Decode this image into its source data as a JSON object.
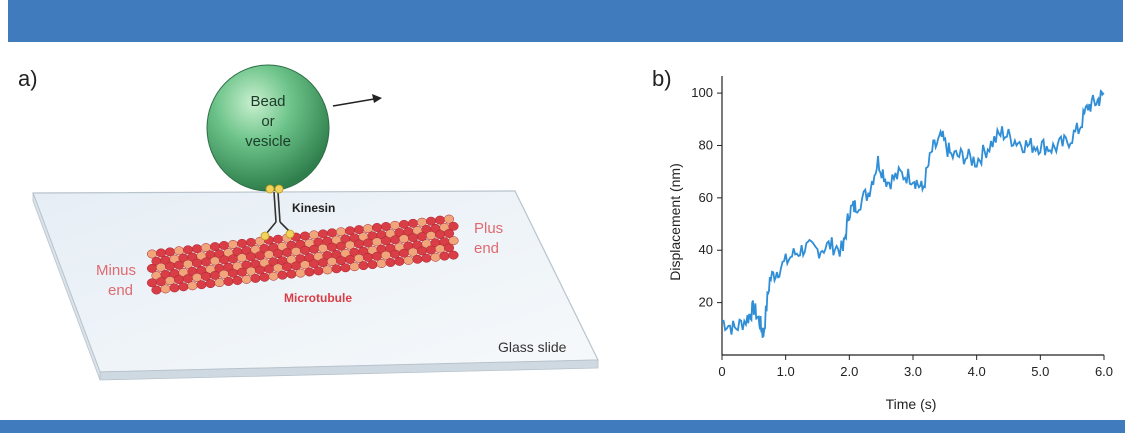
{
  "colors": {
    "band": "#3f7bbd",
    "bead": "#45a36a",
    "tubule": "#d93d46",
    "tubule_alt": "#f0a67a",
    "label_red": "#e06a70",
    "trace": "#2f8ed6"
  },
  "panel_a": {
    "label": "a)",
    "bead_text": [
      "Bead",
      "or",
      "vesicle"
    ],
    "kinesin": "Kinesin",
    "plus_end": [
      "Plus",
      "end"
    ],
    "minus_end": [
      "Minus",
      "end"
    ],
    "microtubule": "Microtubule",
    "glass_slide": "Glass slide"
  },
  "panel_b": {
    "label": "b)",
    "chart_data": {
      "type": "line",
      "xlabel": "Time (s)",
      "ylabel": "Displacement (nm)",
      "x_ticks": [
        "0",
        "1.0",
        "2.0",
        "3.0",
        "4.0",
        "5.0",
        "6.0"
      ],
      "y_ticks": [
        "20",
        "40",
        "60",
        "80",
        "100"
      ],
      "xlim": [
        0,
        6
      ],
      "ylim": [
        0,
        105
      ],
      "series": [
        {
          "x": [
            0,
            0.2,
            0.4,
            0.5,
            0.6,
            0.65,
            0.75,
            0.9,
            1.1,
            1.3,
            1.5,
            1.7,
            1.9,
            2.0,
            2.1,
            2.3,
            2.45,
            2.6,
            2.8,
            3.0,
            3.15,
            3.3,
            3.45,
            3.6,
            3.8,
            4.0,
            4.2,
            4.4,
            4.6,
            4.8,
            5.0,
            5.2,
            5.4,
            5.6,
            5.75,
            5.9,
            6.0
          ],
          "y": [
            13,
            10,
            14,
            18,
            12,
            8,
            29,
            33,
            38,
            41,
            40,
            42,
            40,
            55,
            57,
            62,
            74,
            66,
            69,
            68,
            63,
            78,
            83,
            76,
            76,
            74,
            80,
            85,
            82,
            80,
            80,
            79,
            81,
            86,
            95,
            97,
            100
          ]
        }
      ]
    }
  }
}
